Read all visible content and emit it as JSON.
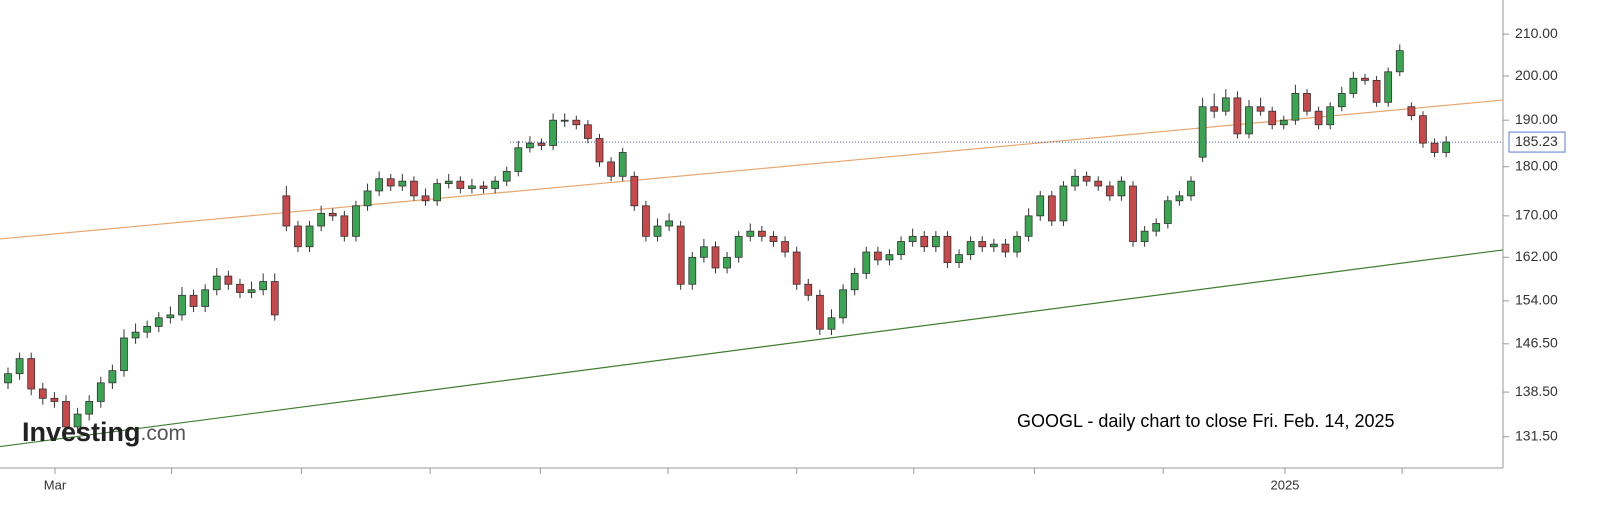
{
  "chart_data": {
    "type": "candlestick",
    "annotation": "GOOGL - daily chart to close Fri. Feb. 14, 2025",
    "watermark": {
      "brand": "Investing",
      "suffix": ".com"
    },
    "log": true,
    "up_color": "#3ba651",
    "down_color": "#c9484a",
    "open": [
      140,
      141.5,
      144,
      139,
      137.5,
      137,
      133,
      135,
      137,
      140,
      142,
      147.5,
      148.5,
      149.5,
      151,
      151.5,
      155,
      153,
      156,
      158.5,
      157,
      155.5,
      156,
      157.5,
      174,
      168,
      164,
      168,
      170.5,
      170,
      166,
      172,
      175,
      177.5,
      176,
      177,
      174,
      173,
      176.5,
      177,
      175.5,
      176,
      175.5,
      177,
      179,
      184,
      185,
      184.5,
      190,
      190,
      189,
      186,
      181,
      178,
      178,
      172,
      166,
      168,
      168,
      157,
      162,
      164,
      160,
      162,
      166,
      167,
      166,
      165,
      163,
      157,
      155,
      149,
      151,
      156,
      159,
      163,
      161.5,
      162.5,
      165,
      166,
      164,
      166,
      161,
      162.5,
      165,
      164,
      164.5,
      163,
      166,
      170,
      174,
      169,
      176,
      178,
      177,
      176,
      174,
      176,
      165,
      167,
      168.5,
      173,
      174,
      182,
      193,
      192,
      195,
      187,
      193,
      192,
      189,
      190,
      196,
      192,
      189,
      193,
      196,
      199.5,
      199,
      194,
      201,
      193,
      191,
      185,
      183
    ],
    "high": [
      142.5,
      145,
      145,
      140,
      138.5,
      138,
      136,
      138,
      141,
      143,
      149,
      150,
      150.5,
      152,
      153,
      156.5,
      156,
      157,
      160,
      159.5,
      158,
      157.5,
      159,
      159,
      176,
      169,
      169,
      172,
      171.5,
      171,
      173,
      176.5,
      179,
      178.5,
      178.5,
      178,
      175.5,
      177.5,
      178.5,
      178,
      177.5,
      177,
      178,
      180,
      185.5,
      186.5,
      186,
      191.5,
      191.5,
      191,
      190,
      187,
      182,
      184,
      179,
      173,
      169.5,
      170.5,
      169,
      163,
      165.5,
      165,
      163,
      167,
      168.5,
      168,
      167,
      166,
      164,
      158,
      156,
      152.5,
      157,
      160,
      164,
      164,
      163.5,
      166,
      167.5,
      167,
      167,
      167,
      163.5,
      166,
      166,
      165.5,
      165.5,
      167,
      171.5,
      175,
      175,
      177,
      179.5,
      179,
      178,
      177,
      178,
      177,
      168,
      169.5,
      174,
      175,
      178,
      195,
      196,
      197,
      196.5,
      194.5,
      195,
      193,
      191,
      198,
      197,
      193,
      194,
      197.5,
      201,
      200.5,
      200,
      202,
      207.5,
      194,
      192,
      186,
      186.5
    ],
    "low": [
      139,
      140.5,
      138,
      136.5,
      136,
      132,
      132,
      134,
      136,
      139,
      141,
      146.5,
      147.5,
      148.5,
      150,
      150.5,
      152,
      152,
      155,
      156,
      154.5,
      154.5,
      155,
      150.5,
      167,
      163,
      163,
      167,
      169,
      165,
      165,
      171,
      174,
      175,
      175,
      173,
      172,
      172,
      175.5,
      174.5,
      174.5,
      174.5,
      174.5,
      176,
      178,
      183,
      183.5,
      183.5,
      188.5,
      188,
      185,
      180,
      177,
      177,
      171,
      165,
      165,
      167,
      156,
      156,
      161,
      159,
      159,
      161,
      165,
      165,
      164,
      162,
      156,
      154,
      148,
      148,
      150,
      155,
      158,
      160.5,
      160.5,
      161.5,
      164,
      163,
      163,
      160,
      160,
      161.5,
      163,
      163,
      162,
      162,
      165,
      169,
      168,
      168,
      175,
      176,
      175,
      173,
      173,
      164,
      164,
      166,
      167.5,
      172,
      173,
      181,
      190.5,
      191,
      186,
      186,
      191,
      188,
      188,
      189,
      191,
      188,
      188,
      192,
      195,
      198,
      193,
      193,
      200,
      190,
      184,
      182,
      182
    ],
    "close": [
      141.5,
      144,
      139,
      137.5,
      137,
      133,
      135,
      137,
      140,
      142,
      147.5,
      148.5,
      149.5,
      151,
      151.5,
      155,
      153,
      156,
      158.5,
      157,
      155.5,
      156,
      157.5,
      151.5,
      168,
      164,
      168,
      170.5,
      170,
      166,
      172,
      175,
      177.5,
      176,
      177,
      174,
      173,
      176.5,
      177,
      175.5,
      176,
      175.5,
      177,
      179,
      184,
      185,
      184.5,
      190,
      190,
      189,
      186,
      181,
      178,
      183,
      172,
      166,
      168,
      169,
      157,
      162,
      164,
      160,
      162,
      166,
      167,
      166,
      165,
      163,
      157,
      155,
      149,
      151,
      156,
      159,
      163,
      161.5,
      162.5,
      165,
      166,
      164,
      166,
      161,
      162.5,
      165,
      164,
      164.5,
      163,
      166,
      170,
      174,
      169,
      176,
      178,
      177,
      176,
      174,
      177,
      165,
      167,
      168.5,
      173,
      174,
      177,
      193,
      192,
      195,
      187,
      193,
      192,
      189,
      190,
      196,
      192,
      189,
      193,
      196,
      199.5,
      199,
      194,
      201,
      206,
      191,
      185,
      183,
      185.23
    ],
    "last_price": 185.23,
    "trendlines": [
      {
        "color": "#e9a66d",
        "x": [
          -0.69,
          128.9
        ],
        "y": [
          165.5,
          194.5
        ]
      },
      {
        "color": "#3f7f2f",
        "x": [
          -0.69,
          128.9
        ],
        "y": [
          130.0,
          163.4
        ]
      }
    ],
    "xlim": [
      -0.69,
      128.9
    ],
    "xticks": [
      {
        "value": 4.05,
        "label": "Mar"
      },
      {
        "value": 110.1,
        "label": "2025"
      }
    ],
    "xticks_minor": [
      14.1,
      25.3,
      36.4,
      45.9,
      56.9,
      68.0,
      78.1,
      88.5,
      99.6,
      120.2
    ],
    "ylim": [
      126.8,
      218.5
    ],
    "yticks": [
      {
        "value": 210,
        "label": "210.00"
      },
      {
        "value": 200,
        "label": "200.00"
      },
      {
        "value": 190,
        "label": "190.00"
      },
      {
        "value": 180,
        "label": "180.00"
      },
      {
        "value": 170,
        "label": "170.00"
      },
      {
        "value": 162,
        "label": "162.00"
      },
      {
        "value": 154,
        "label": "154.00"
      },
      {
        "value": 146.5,
        "label": "146.50"
      },
      {
        "value": 138.5,
        "label": "138.50"
      },
      {
        "value": 131.5,
        "label": "131.50"
      }
    ]
  }
}
